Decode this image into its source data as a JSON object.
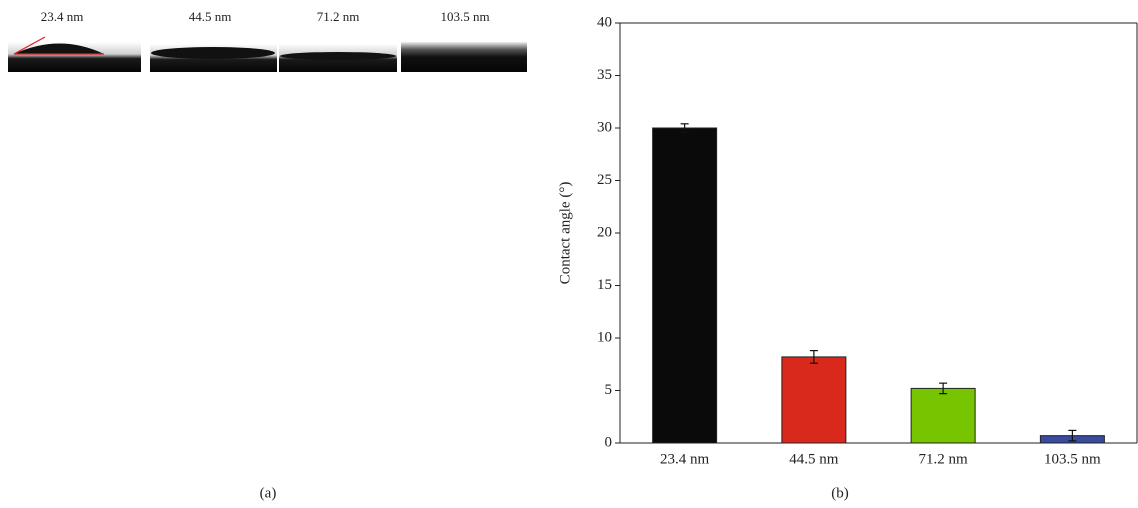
{
  "figure": {
    "image_labels": [
      "23.4 nm",
      "44.5 nm",
      "71.2 nm",
      "103.5 nm"
    ],
    "panel_labels": [
      "(a)",
      "(b)"
    ]
  },
  "chart_data": {
    "type": "bar",
    "y_label": "Contact angle (°)",
    "categories": [
      "23.4 nm",
      "44.5 nm",
      "71.2 nm",
      "103.5 nm"
    ],
    "values": [
      30,
      8.2,
      5.2,
      0.7
    ],
    "errors": [
      0.4,
      0.6,
      0.5,
      0.5
    ],
    "colors": [
      "#0a0a0a",
      "#d9291c",
      "#76c500",
      "#3a4a9c"
    ],
    "ylim": [
      0,
      40
    ],
    "yticks": [
      0,
      5,
      10,
      15,
      20,
      25,
      30,
      35,
      40
    ]
  }
}
